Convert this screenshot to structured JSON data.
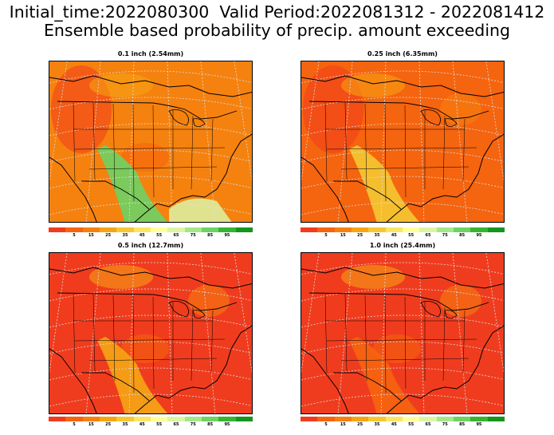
{
  "header": {
    "line1": "Initial_time:2022080300  Valid Period:2022081312 - 2022081412",
    "line2": "Ensemble based probability of precip. amount exceeding"
  },
  "colors": {
    "scale": [
      "#f03c1e",
      "#f5640f",
      "#f5820f",
      "#f5a514",
      "#f5c832",
      "#fae664",
      "#ffff9b",
      "#dcf5a5",
      "#a5e68c",
      "#6ed264",
      "#37b432",
      "#14961e"
    ],
    "ocean": "#ffffff",
    "border": "#000000",
    "grid": "#c8c8c8"
  },
  "colorbar": {
    "labels": [
      "5",
      "15",
      "25",
      "35",
      "45",
      "55",
      "65",
      "75",
      "85",
      "95"
    ]
  },
  "panels": [
    {
      "title": "0.1 inch (2.54mm)",
      "dominant": "#f5820f",
      "wet_region": "#6ed264"
    },
    {
      "title": "0.25 inch (6.35mm)",
      "dominant": "#f5640f",
      "wet_region": "#f5c832"
    },
    {
      "title": "0.5 inch (12.7mm)",
      "dominant": "#f03c1e",
      "wet_region": "#f5a514"
    },
    {
      "title": "1.0 inch (25.4mm)",
      "dominant": "#f03c1e",
      "wet_region": "#f5640f"
    }
  ]
}
